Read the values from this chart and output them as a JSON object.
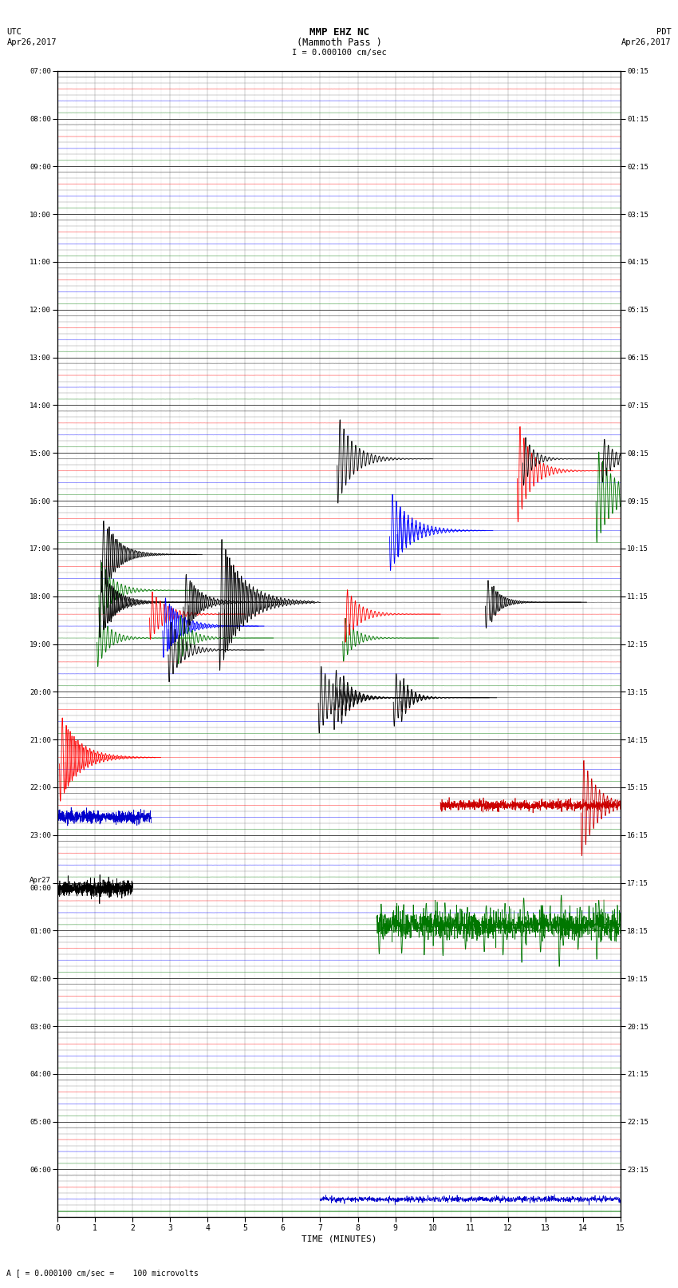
{
  "title_line1": "MMP EHZ NC",
  "title_line2": "(Mammoth Pass )",
  "title_scale": "I = 0.000100 cm/sec",
  "left_label_top": "UTC",
  "left_label_date": "Apr26,2017",
  "right_label_top": "PDT",
  "right_label_date": "Apr26,2017",
  "footer_label": "A [ = 0.000100 cm/sec =    100 microvolts",
  "xlabel": "TIME (MINUTES)",
  "utc_times": [
    "07:00",
    "08:00",
    "09:00",
    "10:00",
    "11:00",
    "12:00",
    "13:00",
    "14:00",
    "15:00",
    "16:00",
    "17:00",
    "18:00",
    "19:00",
    "20:00",
    "21:00",
    "22:00",
    "23:00",
    "Apr27\n00:00",
    "01:00",
    "02:00",
    "03:00",
    "04:00",
    "05:00",
    "06:00"
  ],
  "pdt_times": [
    "00:15",
    "01:15",
    "02:15",
    "03:15",
    "04:15",
    "05:15",
    "06:15",
    "07:15",
    "08:15",
    "09:15",
    "10:15",
    "11:15",
    "12:15",
    "13:15",
    "14:15",
    "15:15",
    "16:15",
    "17:15",
    "18:15",
    "19:15",
    "20:15",
    "21:15",
    "22:15",
    "23:15"
  ],
  "n_rows": 24,
  "n_cols": 15,
  "sub_rows": 4,
  "fig_width": 8.5,
  "fig_height": 16.13,
  "bg_color": "#ffffff",
  "grid_major_color": "#000000",
  "grid_minor_color": "#888888",
  "trace_noise": 0.006,
  "channel_colors": [
    "#000000",
    "#ff0000",
    "#0000ff",
    "#007700"
  ]
}
